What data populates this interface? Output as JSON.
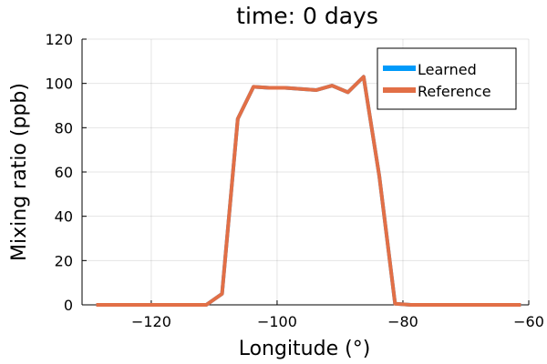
{
  "chart_data": {
    "type": "line",
    "title": "time: 0 days",
    "xlabel": "Longitude (°)",
    "ylabel": "Mixing ratio (ppb)",
    "xlim": [
      -131,
      -60
    ],
    "ylim": [
      0,
      120
    ],
    "xticks": [
      -120,
      -100,
      -80,
      -60
    ],
    "xtick_labels": [
      "−120",
      "−100",
      "−80",
      "−60"
    ],
    "yticks": [
      0,
      20,
      40,
      60,
      80,
      100,
      120
    ],
    "ytick_labels": [
      "0",
      "20",
      "40",
      "60",
      "80",
      "100",
      "120"
    ],
    "grid": true,
    "legend_position": "top-right",
    "x": [
      -128.75,
      -126.25,
      -123.75,
      -121.25,
      -118.75,
      -116.25,
      -113.75,
      -111.25,
      -108.75,
      -106.25,
      -103.75,
      -101.25,
      -98.75,
      -96.25,
      -93.75,
      -91.25,
      -88.75,
      -86.25,
      -83.75,
      -81.25,
      -78.75,
      -76.25,
      -73.75,
      -71.25,
      -68.75,
      -66.25,
      -63.75,
      -61.25
    ],
    "series": [
      {
        "name": "Learned",
        "color": "#009AFA",
        "values": [
          0,
          0,
          0,
          0,
          0,
          0,
          0,
          0,
          5,
          84,
          98.5,
          98,
          98,
          97.5,
          97,
          99,
          96,
          103,
          58,
          0.5,
          0,
          0,
          0,
          0,
          0,
          0,
          0,
          0
        ]
      },
      {
        "name": "Reference",
        "color": "#E26F46",
        "values": [
          0,
          0,
          0,
          0,
          0,
          0,
          0,
          0,
          5,
          84,
          98.5,
          98,
          98,
          97.5,
          97,
          99,
          96,
          103,
          58,
          0.5,
          0,
          0,
          0,
          0,
          0,
          0,
          0,
          0
        ]
      }
    ]
  }
}
